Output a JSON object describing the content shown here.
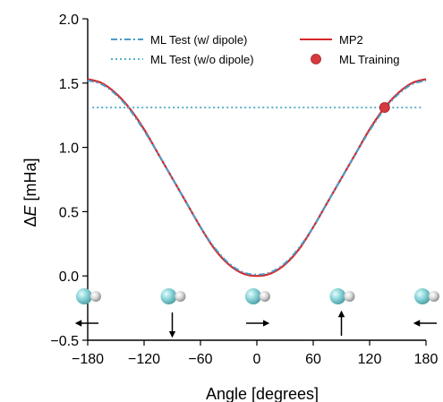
{
  "chart_data": {
    "type": "line",
    "title": "",
    "xlabel": "Angle [degrees]",
    "ylabel": "ΔE [mHa]",
    "ylabel_symbol": "Δ",
    "ylabel_var": "E",
    "ylabel_unit": " [mHa]",
    "xlim": [
      -180,
      180
    ],
    "ylim": [
      -0.5,
      2.0
    ],
    "xticks": [
      -180,
      -120,
      -60,
      0,
      60,
      120,
      180
    ],
    "xtick_labels": [
      "−180",
      "−120",
      "−60",
      "0",
      "60",
      "120",
      "180"
    ],
    "yticks": [
      -0.5,
      0.0,
      0.5,
      1.0,
      1.5,
      2.0
    ],
    "ytick_labels": [
      "−0.5",
      "0.0",
      "0.5",
      "1.0",
      "1.5",
      "2.0"
    ],
    "grid": false,
    "legend_position": "top",
    "series": [
      {
        "name": "ML Test (w/ dipole)",
        "style": "dashdot",
        "color": "#4a9bc9",
        "x": [
          -180,
          -165,
          -150,
          -135,
          -120,
          -105,
          -90,
          -75,
          -60,
          -45,
          -30,
          -15,
          0,
          15,
          30,
          45,
          60,
          75,
          90,
          105,
          120,
          135,
          150,
          165,
          180
        ],
        "y": [
          1.52,
          1.49,
          1.41,
          1.29,
          1.13,
          0.95,
          0.76,
          0.57,
          0.38,
          0.22,
          0.1,
          0.03,
          0.01,
          0.03,
          0.1,
          0.22,
          0.38,
          0.57,
          0.76,
          0.95,
          1.13,
          1.29,
          1.41,
          1.49,
          1.52
        ]
      },
      {
        "name": "ML Test (w/o dipole)",
        "style": "dotted",
        "color": "#5aaec8",
        "x": [
          -175,
          175
        ],
        "y": [
          1.31,
          1.31
        ]
      },
      {
        "name": "MP2",
        "style": "solid",
        "color": "#d62728",
        "x": [
          -180,
          -165,
          -150,
          -135,
          -120,
          -105,
          -90,
          -75,
          -60,
          -45,
          -30,
          -15,
          0,
          15,
          30,
          45,
          60,
          75,
          90,
          105,
          120,
          135,
          150,
          165,
          180
        ],
        "y": [
          1.53,
          1.5,
          1.42,
          1.3,
          1.14,
          0.95,
          0.76,
          0.57,
          0.38,
          0.21,
          0.09,
          0.02,
          0.0,
          0.02,
          0.09,
          0.21,
          0.38,
          0.57,
          0.76,
          0.95,
          1.14,
          1.3,
          1.42,
          1.5,
          1.53
        ]
      },
      {
        "name": "ML Training",
        "style": "marker",
        "color": "#d63a3f",
        "x": [
          136
        ],
        "y": [
          1.31
        ]
      }
    ],
    "molecules": [
      {
        "angle": -180,
        "arrow": "left"
      },
      {
        "angle": -90,
        "arrow": "down"
      },
      {
        "angle": 0,
        "arrow": "right"
      },
      {
        "angle": 90,
        "arrow": "up"
      },
      {
        "angle": 180,
        "arrow": "left"
      }
    ]
  },
  "colors": {
    "axis": "#000000",
    "atom_large": "#8fd8dc",
    "atom_small": "#d8d8d8"
  },
  "icons": [
    "molecule-icon",
    "dipole-arrow-icon"
  ]
}
